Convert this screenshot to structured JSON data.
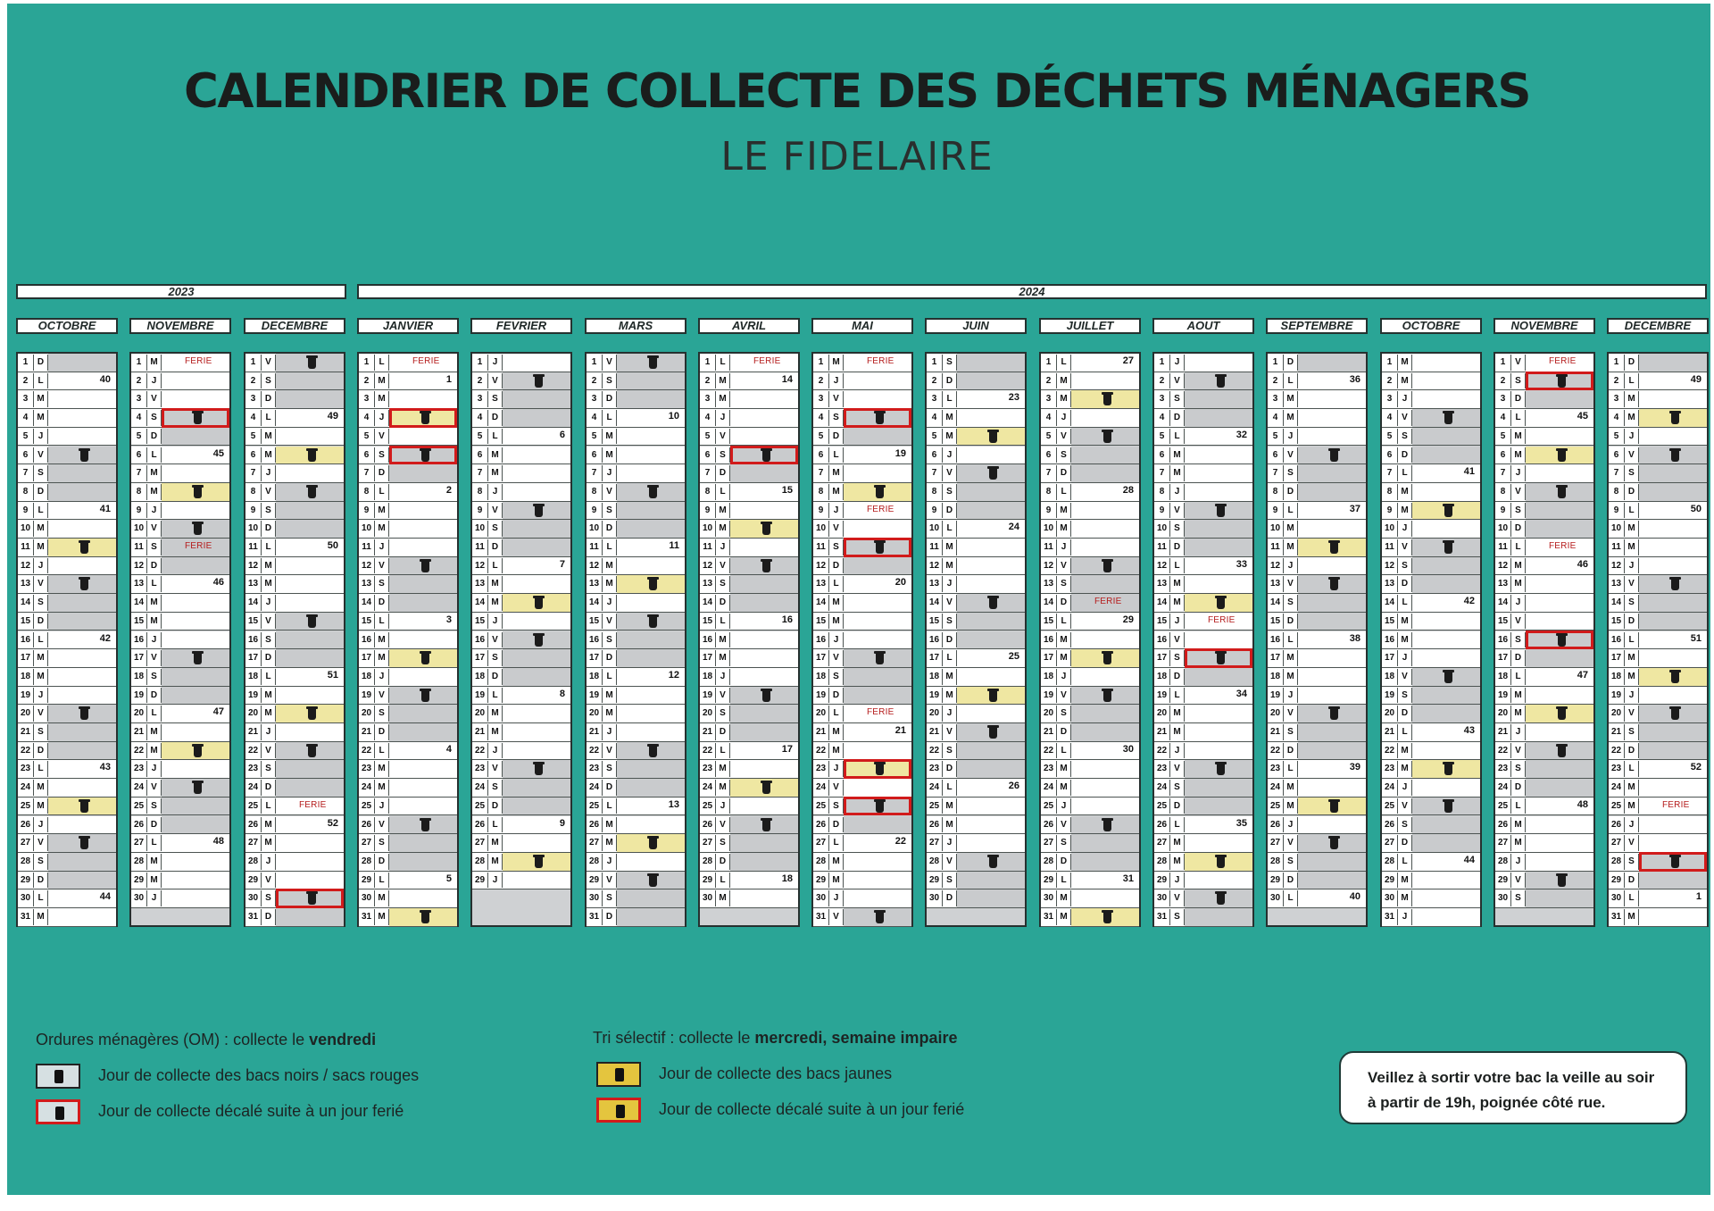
{
  "header": {
    "title": "CALENDRIER DE COLLECTE DES DÉCHETS MÉNAGERS",
    "subtitle": "LE FIDELAIRE"
  },
  "years": [
    "2023",
    "2024"
  ],
  "colors": {
    "background": "#2aa596",
    "ferie": "#b51c1c",
    "highlight_box": "#d11b1b",
    "yellow_fill": "#efe7a2",
    "weekend_fill": "#c9cbcd"
  },
  "months": [
    {
      "name": "OCTOBRE",
      "year": "2023",
      "start": 0,
      "days": 31,
      "weeks": {
        "2": "40",
        "9": "41",
        "16": "42",
        "23": "43",
        "30": "44"
      },
      "black": [
        6,
        13,
        20,
        27
      ],
      "yellow": [
        11,
        25
      ],
      "red": [],
      "ferie": []
    },
    {
      "name": "NOVEMBRE",
      "year": "2023",
      "start": 3,
      "days": 30,
      "weeks": {
        "6": "45",
        "13": "46",
        "20": "47",
        "27": "48"
      },
      "black": [
        10,
        17,
        24
      ],
      "yellow": [
        8,
        22
      ],
      "red": [
        4
      ],
      "ferie": [
        1,
        11
      ]
    },
    {
      "name": "DECEMBRE",
      "year": "2023",
      "start": 5,
      "days": 31,
      "weeks": {
        "4": "49",
        "11": "50",
        "18": "51",
        "26": "52"
      },
      "black": [
        1,
        8,
        15,
        22
      ],
      "yellow": [
        6,
        20
      ],
      "red": [
        30
      ],
      "ferie": [
        25
      ]
    },
    {
      "name": "JANVIER",
      "year": "2024",
      "start": 1,
      "days": 31,
      "weeks": {
        "2": "1",
        "8": "2",
        "15": "3",
        "22": "4",
        "29": "5"
      },
      "black": [
        12,
        19,
        26
      ],
      "yellow": [
        17,
        31
      ],
      "red": [
        6
      ],
      "red_yellow": [
        4
      ],
      "ferie": [
        1
      ]
    },
    {
      "name": "FEVRIER",
      "year": "2024",
      "start": 4,
      "days": 29,
      "weeks": {
        "5": "6",
        "12": "7",
        "19": "8",
        "26": "9"
      },
      "black": [
        2,
        9,
        16,
        23
      ],
      "yellow": [
        14,
        28
      ],
      "red": [],
      "ferie": []
    },
    {
      "name": "MARS",
      "year": "2024",
      "start": 5,
      "days": 31,
      "weeks": {
        "4": "10",
        "11": "11",
        "18": "12",
        "25": "13"
      },
      "black": [
        1,
        8,
        15,
        22,
        29
      ],
      "yellow": [
        13,
        27
      ],
      "red": [],
      "ferie": []
    },
    {
      "name": "AVRIL",
      "year": "2024",
      "start": 1,
      "days": 30,
      "weeks": {
        "2": "14",
        "8": "15",
        "15": "16",
        "22": "17",
        "29": "18"
      },
      "black": [
        12,
        19,
        26
      ],
      "yellow": [
        10,
        24
      ],
      "red": [
        6
      ],
      "ferie": [
        1
      ]
    },
    {
      "name": "MAI",
      "year": "2024",
      "start": 3,
      "days": 31,
      "weeks": {
        "6": "19",
        "13": "20",
        "21": "21",
        "27": "22"
      },
      "black": [
        17,
        31
      ],
      "yellow": [
        8
      ],
      "red": [
        4,
        11,
        25
      ],
      "red_yellow": [
        23
      ],
      "ferie": [
        1,
        9,
        20
      ]
    },
    {
      "name": "JUIN",
      "year": "2024",
      "start": 6,
      "days": 30,
      "weeks": {
        "3": "23",
        "10": "24",
        "17": "25",
        "24": "26"
      },
      "black": [
        7,
        14,
        21,
        28
      ],
      "yellow": [
        5,
        19
      ],
      "red": [],
      "ferie": []
    },
    {
      "name": "JUILLET",
      "year": "2024",
      "start": 1,
      "days": 31,
      "weeks": {
        "1": "27",
        "8": "28",
        "15": "29",
        "22": "30",
        "29": "31"
      },
      "black": [
        5,
        12,
        19,
        26
      ],
      "yellow": [
        3,
        17,
        31
      ],
      "red": [],
      "ferie": [
        14
      ]
    },
    {
      "name": "AOUT",
      "year": "2024",
      "start": 4,
      "days": 31,
      "weeks": {
        "5": "32",
        "12": "33",
        "19": "34",
        "26": "35"
      },
      "black": [
        2,
        9,
        23,
        30
      ],
      "yellow": [
        14,
        28
      ],
      "red": [
        17
      ],
      "ferie": [
        15
      ]
    },
    {
      "name": "SEPTEMBRE",
      "year": "2024",
      "start": 0,
      "days": 30,
      "weeks": {
        "2": "36",
        "9": "37",
        "16": "38",
        "23": "39",
        "30": "40"
      },
      "black": [
        6,
        13,
        20,
        27
      ],
      "yellow": [
        11,
        25
      ],
      "red": [],
      "ferie": []
    },
    {
      "name": "OCTOBRE",
      "year": "2024",
      "start": 2,
      "days": 31,
      "weeks": {
        "7": "41",
        "14": "42",
        "21": "43",
        "28": "44"
      },
      "black": [
        4,
        11,
        18,
        25
      ],
      "yellow": [
        9,
        23
      ],
      "red": [],
      "ferie": []
    },
    {
      "name": "NOVEMBRE",
      "year": "2024",
      "start": 5,
      "days": 30,
      "weeks": {
        "4": "45",
        "12": "46",
        "18": "47",
        "25": "48"
      },
      "black": [
        8,
        22,
        29
      ],
      "yellow": [
        6,
        20
      ],
      "red": [
        2,
        16
      ],
      "ferie": [
        1,
        11
      ]
    },
    {
      "name": "DECEMBRE",
      "year": "2024",
      "start": 0,
      "days": 31,
      "weeks": {
        "2": "49",
        "9": "50",
        "16": "51",
        "23": "52",
        "30": "1"
      },
      "black": [
        6,
        13,
        20
      ],
      "yellow": [
        4,
        18
      ],
      "red": [
        28
      ],
      "ferie": [
        25
      ]
    }
  ],
  "day_letters": [
    "D",
    "L",
    "M",
    "M",
    "J",
    "V",
    "S"
  ],
  "ferie_label": "FERIE",
  "legend": {
    "om_title_prefix": "Ordures ménagères (OM) : collecte le ",
    "om_title_bold": "vendredi",
    "om_items": [
      "Jour de collecte des bacs noirs / sacs rouges",
      "Jour de collecte décalé suite à un jour ferié"
    ],
    "tri_title_prefix": "Tri sélectif : collecte le ",
    "tri_title_bold": "mercredi, semaine impaire",
    "tri_items": [
      "Jour de collecte des bacs jaunes",
      "Jour de collecte décalé suite à un jour ferié"
    ]
  },
  "note": {
    "line1": "Veillez à sortir votre bac la veille au soir",
    "line2": "à partir de 19h, poignée côté rue."
  }
}
